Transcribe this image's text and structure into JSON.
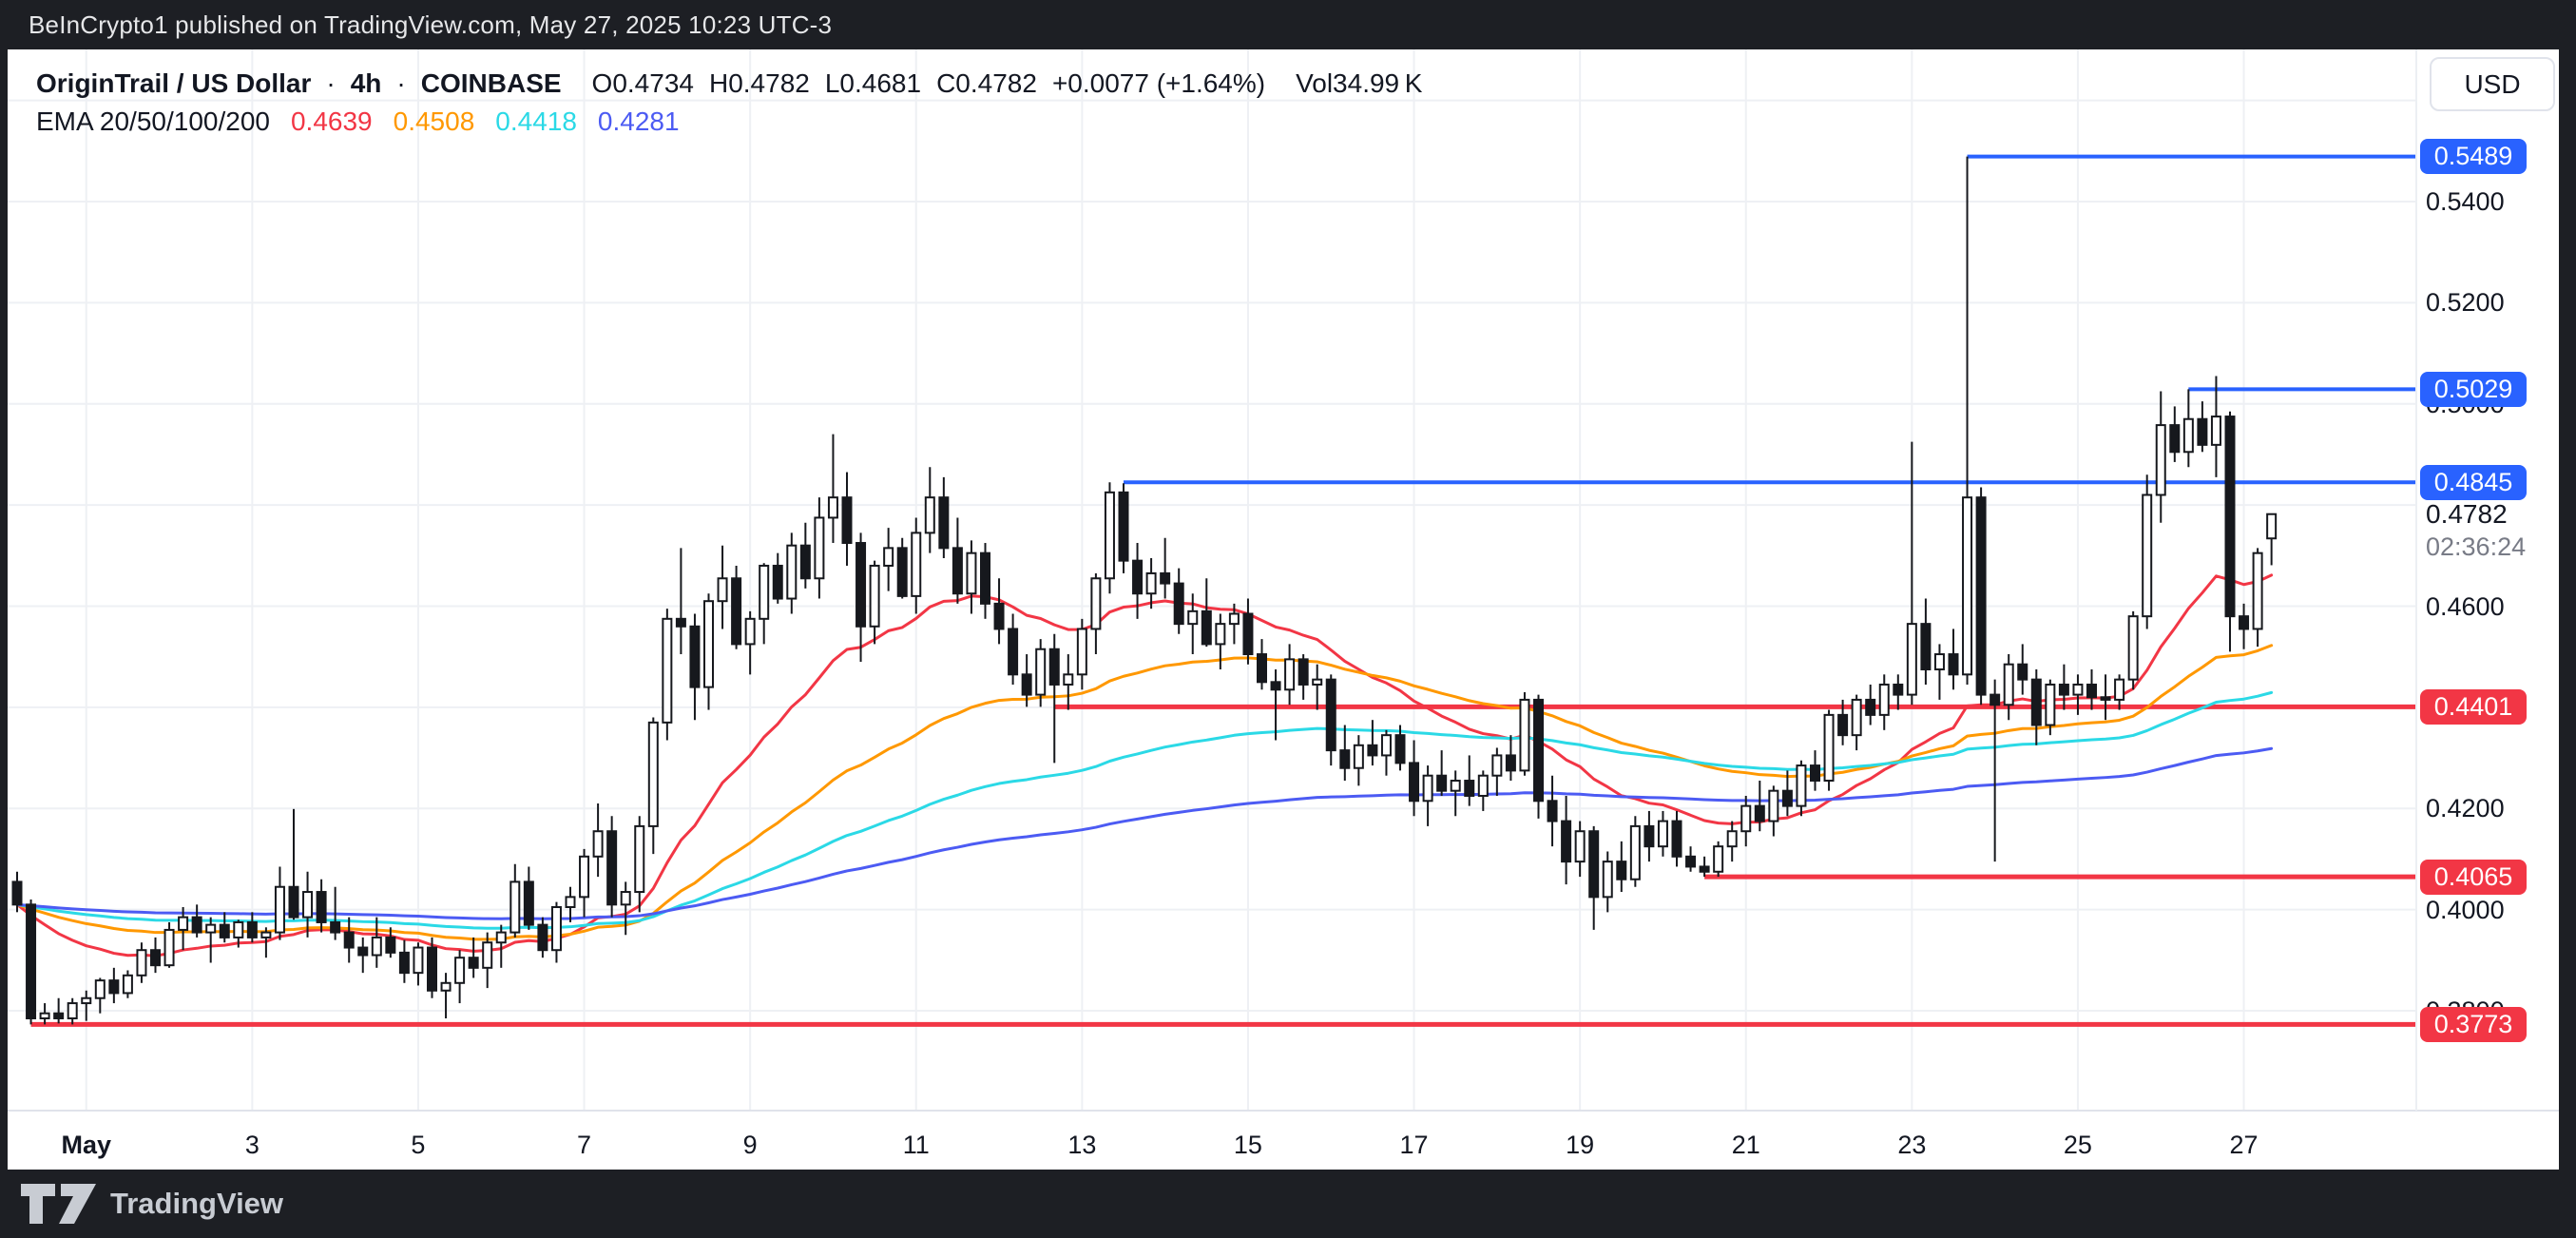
{
  "attribution_bar": {
    "text": "BeInCrypto1 published on TradingView.com, May 27, 2025 10:23 UTC-3"
  },
  "header": {
    "separator": "·",
    "o_label": "O",
    "h_label": "H",
    "l_label": "L",
    "c_label": "C",
    "vol_label": "Vol"
  },
  "price_scale": {
    "currency": "USD"
  },
  "footer": {
    "logo_text": "TradingView"
  },
  "chart_data": {
    "type": "candlestick",
    "title": "OriginTrail / US Dollar",
    "interval": "4h",
    "exchange": "COINBASE",
    "current": {
      "open": "0.4734",
      "high": "0.4782",
      "low": "0.4681",
      "close": "0.4782",
      "change": "+0.0077 (+1.64%)",
      "volume": "34.99 K",
      "price_label": "0.4782",
      "countdown": "02:36:24",
      "price": 0.4782
    },
    "ema": {
      "legend": "EMA 20/50/100/200",
      "periods": [
        20,
        50,
        100,
        200
      ],
      "values": [
        "0.4639",
        "0.4508",
        "0.4418",
        "0.4281"
      ],
      "colors": [
        "#F23645",
        "#FF9800",
        "#2BD9E6",
        "#4C5BF3"
      ]
    },
    "colors": {
      "up_body": "#ffffff",
      "down_body": "#16181d",
      "outline": "#16181d",
      "level_blue": "#2962FF",
      "level_red": "#F23645",
      "grid": "#eef0f4",
      "axis_line": "#e0e3eb"
    },
    "y_axis": {
      "grid_prices": [
        0.56,
        0.54,
        0.52,
        0.5,
        0.48,
        0.46,
        0.44,
        0.42,
        0.4,
        0.38
      ],
      "labels": [
        {
          "text": "0.5400",
          "price": 0.54
        },
        {
          "text": "0.5200",
          "price": 0.52
        },
        {
          "text": "0.5000",
          "price": 0.5
        },
        {
          "text": "0.4600",
          "price": 0.46
        },
        {
          "text": "0.4200",
          "price": 0.42
        },
        {
          "text": "0.4000",
          "price": 0.4
        },
        {
          "text": "0.3800",
          "price": 0.38
        }
      ]
    },
    "x_axis": {
      "labels": [
        {
          "text": "May",
          "index": 5,
          "month": true
        },
        {
          "text": "3",
          "index": 17
        },
        {
          "text": "5",
          "index": 29
        },
        {
          "text": "7",
          "index": 41
        },
        {
          "text": "9",
          "index": 53
        },
        {
          "text": "11",
          "index": 65
        },
        {
          "text": "13",
          "index": 77
        },
        {
          "text": "15",
          "index": 89
        },
        {
          "text": "17",
          "index": 101
        },
        {
          "text": "19",
          "index": 113
        },
        {
          "text": "21",
          "index": 125
        },
        {
          "text": "23",
          "index": 137
        },
        {
          "text": "25",
          "index": 149
        },
        {
          "text": "27",
          "index": 161
        }
      ]
    },
    "levels": [
      {
        "label": "0.5489",
        "price": 0.5489,
        "color": "#2962FF",
        "width": 4,
        "start_index": 141
      },
      {
        "label": "0.5029",
        "price": 0.5029,
        "color": "#2962FF",
        "width": 4,
        "start_index": 157
      },
      {
        "label": "0.4845",
        "price": 0.4845,
        "color": "#2962FF",
        "width": 4,
        "start_index": 80
      },
      {
        "label": "0.4401",
        "price": 0.4401,
        "color": "#F23645",
        "width": 5,
        "start_index": 75
      },
      {
        "label": "0.4065",
        "price": 0.4065,
        "color": "#F23645",
        "width": 5,
        "start_index": 122
      },
      {
        "label": "0.3773",
        "price": 0.3773,
        "color": "#F23645",
        "width": 5,
        "start_index": 1
      }
    ],
    "candles": [
      [
        0.4055,
        0.4075,
        0.3995,
        0.401
      ],
      [
        0.401,
        0.402,
        0.3773,
        0.3785
      ],
      [
        0.3785,
        0.3815,
        0.3773,
        0.3795
      ],
      [
        0.3795,
        0.3825,
        0.3775,
        0.3785
      ],
      [
        0.3785,
        0.3825,
        0.3773,
        0.3815
      ],
      [
        0.3815,
        0.384,
        0.378,
        0.3825
      ],
      [
        0.3825,
        0.3865,
        0.3795,
        0.386
      ],
      [
        0.386,
        0.3885,
        0.3815,
        0.3835
      ],
      [
        0.3835,
        0.388,
        0.3825,
        0.387
      ],
      [
        0.387,
        0.3935,
        0.3855,
        0.392
      ],
      [
        0.392,
        0.3945,
        0.3875,
        0.389
      ],
      [
        0.389,
        0.3975,
        0.3885,
        0.396
      ],
      [
        0.396,
        0.4005,
        0.392,
        0.3985
      ],
      [
        0.3985,
        0.401,
        0.3945,
        0.3955
      ],
      [
        0.3955,
        0.3985,
        0.3895,
        0.397
      ],
      [
        0.397,
        0.3995,
        0.3935,
        0.3945
      ],
      [
        0.3945,
        0.398,
        0.3925,
        0.3975
      ],
      [
        0.3975,
        0.3995,
        0.3935,
        0.3945
      ],
      [
        0.3945,
        0.3965,
        0.3905,
        0.3955
      ],
      [
        0.3955,
        0.4085,
        0.394,
        0.4045
      ],
      [
        0.4045,
        0.4199,
        0.398,
        0.3985
      ],
      [
        0.3985,
        0.4075,
        0.3945,
        0.4035
      ],
      [
        0.4035,
        0.406,
        0.3955,
        0.3975
      ],
      [
        0.3975,
        0.4045,
        0.394,
        0.3955
      ],
      [
        0.3955,
        0.3985,
        0.3895,
        0.3925
      ],
      [
        0.3925,
        0.3945,
        0.3875,
        0.391
      ],
      [
        0.391,
        0.3985,
        0.3885,
        0.3945
      ],
      [
        0.3945,
        0.3965,
        0.3905,
        0.3915
      ],
      [
        0.3915,
        0.394,
        0.3855,
        0.3875
      ],
      [
        0.3875,
        0.3935,
        0.385,
        0.3925
      ],
      [
        0.3925,
        0.3945,
        0.3825,
        0.384
      ],
      [
        0.384,
        0.3875,
        0.3785,
        0.3855
      ],
      [
        0.3855,
        0.392,
        0.3815,
        0.3905
      ],
      [
        0.3905,
        0.3945,
        0.3865,
        0.3885
      ],
      [
        0.3885,
        0.3955,
        0.3845,
        0.3935
      ],
      [
        0.3935,
        0.397,
        0.3885,
        0.3955
      ],
      [
        0.3955,
        0.409,
        0.3945,
        0.4055
      ],
      [
        0.4055,
        0.4085,
        0.396,
        0.397
      ],
      [
        0.397,
        0.3985,
        0.3905,
        0.392
      ],
      [
        0.392,
        0.4015,
        0.3895,
        0.4005
      ],
      [
        0.4005,
        0.4045,
        0.3975,
        0.4025
      ],
      [
        0.4025,
        0.412,
        0.3985,
        0.4105
      ],
      [
        0.4105,
        0.421,
        0.4065,
        0.4155
      ],
      [
        0.4155,
        0.4185,
        0.3985,
        0.401
      ],
      [
        0.401,
        0.4055,
        0.395,
        0.4035
      ],
      [
        0.4035,
        0.4185,
        0.3995,
        0.4165
      ],
      [
        0.4165,
        0.438,
        0.411,
        0.437
      ],
      [
        0.437,
        0.4595,
        0.4335,
        0.4575
      ],
      [
        0.4575,
        0.4715,
        0.4505,
        0.456
      ],
      [
        0.456,
        0.4585,
        0.4375,
        0.444
      ],
      [
        0.444,
        0.4625,
        0.4395,
        0.461
      ],
      [
        0.461,
        0.472,
        0.4555,
        0.4655
      ],
      [
        0.4655,
        0.468,
        0.4515,
        0.4525
      ],
      [
        0.4525,
        0.459,
        0.4465,
        0.4575
      ],
      [
        0.4575,
        0.4685,
        0.4525,
        0.468
      ],
      [
        0.468,
        0.4705,
        0.4605,
        0.4615
      ],
      [
        0.4615,
        0.4745,
        0.4585,
        0.472
      ],
      [
        0.472,
        0.4765,
        0.4635,
        0.4655
      ],
      [
        0.4655,
        0.4815,
        0.4615,
        0.4775
      ],
      [
        0.4775,
        0.494,
        0.4725,
        0.4815
      ],
      [
        0.4815,
        0.4865,
        0.468,
        0.4725
      ],
      [
        0.4725,
        0.4745,
        0.449,
        0.456
      ],
      [
        0.456,
        0.469,
        0.4525,
        0.468
      ],
      [
        0.468,
        0.4755,
        0.463,
        0.4715
      ],
      [
        0.4715,
        0.4735,
        0.4615,
        0.462
      ],
      [
        0.462,
        0.4775,
        0.4585,
        0.4745
      ],
      [
        0.4745,
        0.4875,
        0.4705,
        0.4815
      ],
      [
        0.4815,
        0.4855,
        0.4695,
        0.4715
      ],
      [
        0.4715,
        0.4775,
        0.4605,
        0.4625
      ],
      [
        0.4625,
        0.473,
        0.4585,
        0.4705
      ],
      [
        0.4705,
        0.4725,
        0.4575,
        0.4605
      ],
      [
        0.4605,
        0.4655,
        0.4525,
        0.4555
      ],
      [
        0.4555,
        0.4585,
        0.4445,
        0.4465
      ],
      [
        0.4465,
        0.4505,
        0.4401,
        0.4425
      ],
      [
        0.4425,
        0.4535,
        0.4401,
        0.4515
      ],
      [
        0.4515,
        0.4545,
        0.429,
        0.4445
      ],
      [
        0.4445,
        0.4505,
        0.4395,
        0.4465
      ],
      [
        0.4465,
        0.4575,
        0.4435,
        0.4555
      ],
      [
        0.4555,
        0.4665,
        0.4505,
        0.4655
      ],
      [
        0.4655,
        0.4845,
        0.4625,
        0.4825
      ],
      [
        0.4825,
        0.4843,
        0.4665,
        0.469
      ],
      [
        0.469,
        0.4725,
        0.4575,
        0.4625
      ],
      [
        0.4625,
        0.4695,
        0.4595,
        0.4665
      ],
      [
        0.4665,
        0.4735,
        0.4615,
        0.4645
      ],
      [
        0.4645,
        0.4675,
        0.4545,
        0.4565
      ],
      [
        0.4565,
        0.4625,
        0.4505,
        0.459
      ],
      [
        0.459,
        0.4655,
        0.452,
        0.4525
      ],
      [
        0.4525,
        0.4585,
        0.4475,
        0.4565
      ],
      [
        0.4565,
        0.4605,
        0.4525,
        0.4585
      ],
      [
        0.4585,
        0.4615,
        0.4485,
        0.4505
      ],
      [
        0.4505,
        0.4535,
        0.4435,
        0.445
      ],
      [
        0.445,
        0.4475,
        0.4335,
        0.4435
      ],
      [
        0.4435,
        0.4525,
        0.4405,
        0.4495
      ],
      [
        0.4495,
        0.4505,
        0.4415,
        0.4445
      ],
      [
        0.4445,
        0.4485,
        0.4395,
        0.4455
      ],
      [
        0.4455,
        0.4465,
        0.4285,
        0.4315
      ],
      [
        0.4315,
        0.4365,
        0.4255,
        0.428
      ],
      [
        0.428,
        0.4345,
        0.4245,
        0.4325
      ],
      [
        0.4325,
        0.4375,
        0.4285,
        0.4305
      ],
      [
        0.4305,
        0.4355,
        0.4265,
        0.4345
      ],
      [
        0.4345,
        0.4365,
        0.4275,
        0.429
      ],
      [
        0.429,
        0.4335,
        0.4185,
        0.4215
      ],
      [
        0.4215,
        0.4285,
        0.4165,
        0.4265
      ],
      [
        0.4265,
        0.4315,
        0.4225,
        0.4235
      ],
      [
        0.4235,
        0.4275,
        0.4185,
        0.4255
      ],
      [
        0.4255,
        0.4305,
        0.4205,
        0.4225
      ],
      [
        0.4225,
        0.4275,
        0.4195,
        0.4265
      ],
      [
        0.4265,
        0.432,
        0.4225,
        0.4305
      ],
      [
        0.4305,
        0.4345,
        0.4255,
        0.4275
      ],
      [
        0.4275,
        0.443,
        0.4265,
        0.4415
      ],
      [
        0.4415,
        0.4425,
        0.418,
        0.4215
      ],
      [
        0.4215,
        0.4265,
        0.4125,
        0.4175
      ],
      [
        0.4175,
        0.4225,
        0.405,
        0.4095
      ],
      [
        0.4095,
        0.4175,
        0.4065,
        0.4155
      ],
      [
        0.4155,
        0.4165,
        0.396,
        0.4025
      ],
      [
        0.4025,
        0.4115,
        0.3995,
        0.4095
      ],
      [
        0.4095,
        0.4135,
        0.4035,
        0.406
      ],
      [
        0.406,
        0.4185,
        0.4045,
        0.4165
      ],
      [
        0.4165,
        0.4195,
        0.4095,
        0.4125
      ],
      [
        0.4125,
        0.4195,
        0.4105,
        0.4175
      ],
      [
        0.4175,
        0.4195,
        0.4085,
        0.4105
      ],
      [
        0.4105,
        0.4125,
        0.4075,
        0.4085
      ],
      [
        0.4085,
        0.4105,
        0.4065,
        0.4075
      ],
      [
        0.4075,
        0.4135,
        0.4065,
        0.4125
      ],
      [
        0.4125,
        0.4175,
        0.4095,
        0.4155
      ],
      [
        0.4155,
        0.4225,
        0.4125,
        0.4205
      ],
      [
        0.4205,
        0.4255,
        0.4155,
        0.4175
      ],
      [
        0.4175,
        0.4245,
        0.4145,
        0.4235
      ],
      [
        0.4235,
        0.4275,
        0.4185,
        0.4205
      ],
      [
        0.4205,
        0.4295,
        0.4185,
        0.4285
      ],
      [
        0.4285,
        0.4315,
        0.4235,
        0.4255
      ],
      [
        0.4255,
        0.4395,
        0.4235,
        0.4385
      ],
      [
        0.4385,
        0.4415,
        0.4325,
        0.4345
      ],
      [
        0.4345,
        0.4425,
        0.4315,
        0.4415
      ],
      [
        0.4415,
        0.4445,
        0.4365,
        0.4385
      ],
      [
        0.4385,
        0.4465,
        0.4355,
        0.4445
      ],
      [
        0.4445,
        0.4465,
        0.4395,
        0.4425
      ],
      [
        0.4425,
        0.4925,
        0.4405,
        0.4565
      ],
      [
        0.4565,
        0.4615,
        0.4445,
        0.4475
      ],
      [
        0.4475,
        0.4525,
        0.4415,
        0.4505
      ],
      [
        0.4505,
        0.4555,
        0.4435,
        0.4465
      ],
      [
        0.4465,
        0.5489,
        0.4445,
        0.4815
      ],
      [
        0.4815,
        0.4835,
        0.4405,
        0.4425
      ],
      [
        0.4425,
        0.4455,
        0.4095,
        0.4405
      ],
      [
        0.4405,
        0.4505,
        0.4375,
        0.4485
      ],
      [
        0.4485,
        0.4525,
        0.4425,
        0.4455
      ],
      [
        0.4455,
        0.4475,
        0.4325,
        0.4365
      ],
      [
        0.4365,
        0.4455,
        0.4345,
        0.4445
      ],
      [
        0.4445,
        0.4485,
        0.4395,
        0.4425
      ],
      [
        0.4425,
        0.4465,
        0.4385,
        0.4445
      ],
      [
        0.4445,
        0.4475,
        0.4395,
        0.442
      ],
      [
        0.442,
        0.4465,
        0.4375,
        0.4415
      ],
      [
        0.4415,
        0.4465,
        0.4395,
        0.4455
      ],
      [
        0.4455,
        0.459,
        0.4435,
        0.458
      ],
      [
        0.458,
        0.486,
        0.4555,
        0.482
      ],
      [
        0.482,
        0.5025,
        0.4765,
        0.4958
      ],
      [
        0.4958,
        0.4995,
        0.4885,
        0.4905
      ],
      [
        0.4905,
        0.5029,
        0.4875,
        0.497
      ],
      [
        0.497,
        0.5005,
        0.4905,
        0.4919
      ],
      [
        0.4919,
        0.5055,
        0.4855,
        0.4975
      ],
      [
        0.4975,
        0.4985,
        0.451,
        0.458
      ],
      [
        0.458,
        0.4605,
        0.4515,
        0.4555
      ],
      [
        0.4555,
        0.4715,
        0.452,
        0.4705
      ],
      [
        0.4734,
        0.4782,
        0.4681,
        0.4782
      ]
    ]
  }
}
